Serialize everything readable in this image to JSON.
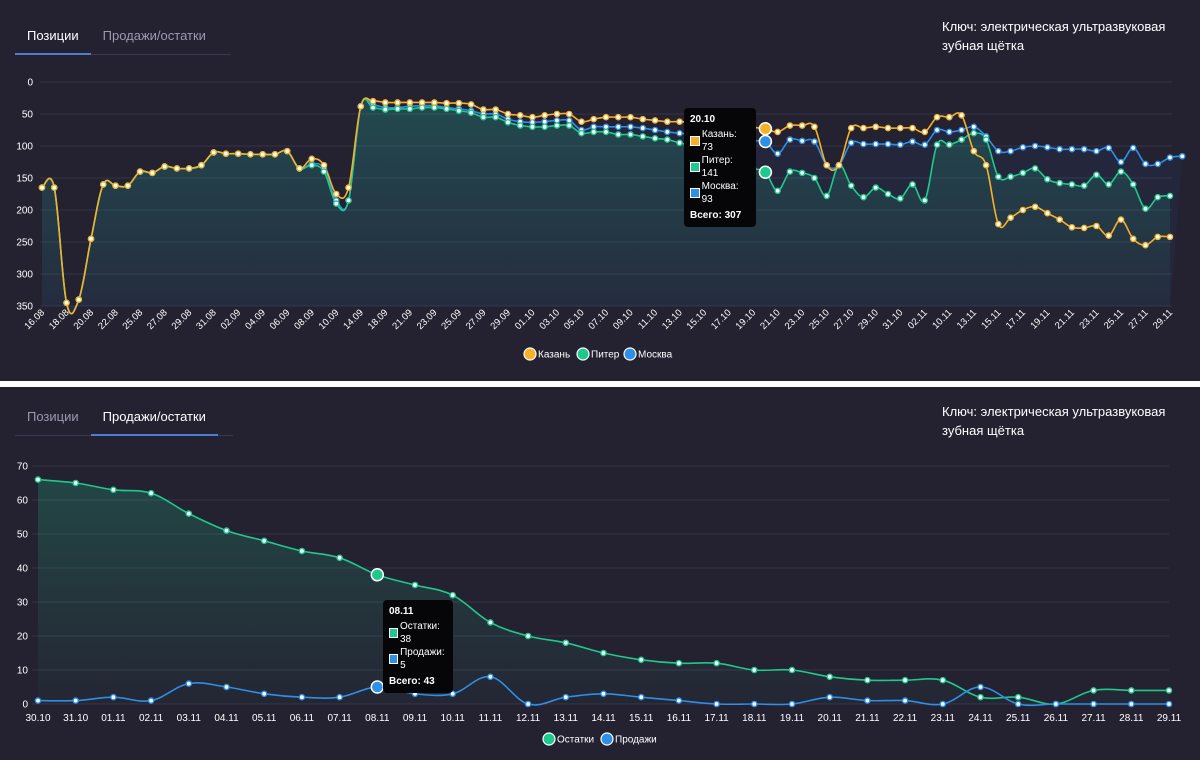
{
  "top": {
    "tabs": [
      {
        "label": "Позиции",
        "active": true
      },
      {
        "label": "Продажи/остатки",
        "active": false
      }
    ],
    "key_text": "Ключ: электрическая ультразвуковая зубная щётка",
    "tooltip": {
      "title": "20.10",
      "rows": [
        {
          "label": "Казань: 73",
          "color": "#f6b12a"
        },
        {
          "label": "Питер: 141",
          "color": "#1fc98d"
        },
        {
          "label": "Москва: 93",
          "color": "#2d8fe6"
        }
      ],
      "total": "Всего: 307"
    }
  },
  "bottom": {
    "tabs": [
      {
        "label": "Позиции",
        "active": false
      },
      {
        "label": "Продажи/остатки",
        "active": true
      }
    ],
    "key_text": "Ключ: электрическая ультразвуковая зубная щётка",
    "tooltip": {
      "title": "08.11",
      "rows": [
        {
          "label": "Остатки: 38",
          "color": "#1fc98d"
        },
        {
          "label": "Продажи: 5",
          "color": "#2d8fe6"
        }
      ],
      "total": "Всего: 43"
    }
  },
  "chart_data": [
    {
      "type": "line",
      "title": "Позиции",
      "y_reversed": true,
      "ylim": [
        0,
        350
      ],
      "y_ticks": [
        0,
        50,
        100,
        150,
        200,
        250,
        300,
        350
      ],
      "x_labels": [
        "16.08",
        "18.08",
        "20.08",
        "22.08",
        "25.08",
        "27.08",
        "29.08",
        "31.08",
        "02.09",
        "04.09",
        "06.09",
        "08.09",
        "10.09",
        "14.09",
        "18.09",
        "21.09",
        "23.09",
        "25.09",
        "27.09",
        "29.09",
        "01.10",
        "03.10",
        "05.10",
        "07.10",
        "09.10",
        "11.10",
        "13.10",
        "15.10",
        "17.10",
        "19.10",
        "21.10",
        "23.10",
        "25.10",
        "27.10",
        "29.10",
        "31.10",
        "02.11",
        "10.11",
        "13.11",
        "15.11",
        "17.11",
        "19.11",
        "21.11",
        "23.11",
        "25.11",
        "27.11",
        "29.11"
      ],
      "series": [
        {
          "name": "Казань",
          "color": "#f6b12a",
          "values": [
            165,
            165,
            345,
            340,
            245,
            160,
            162,
            162,
            140,
            142,
            132,
            135,
            135,
            130,
            110,
            112,
            112,
            113,
            113,
            113,
            108,
            135,
            120,
            130,
            175,
            165,
            38,
            30,
            32,
            32,
            32,
            32,
            32,
            33,
            33,
            35,
            43,
            43,
            50,
            52,
            55,
            52,
            50,
            50,
            62,
            58,
            55,
            55,
            55,
            58,
            60,
            62,
            62,
            63,
            65,
            68,
            70,
            70,
            71,
            73,
            78,
            68,
            68,
            70,
            130,
            130,
            72,
            72,
            70,
            72,
            72,
            72,
            78,
            55,
            55,
            52,
            108,
            130,
            222,
            212,
            200,
            195,
            205,
            215,
            227,
            228,
            225,
            240,
            215,
            245,
            255,
            242,
            242
          ]
        },
        {
          "name": "Питер",
          "color": "#1fc98d",
          "values": [
            165,
            165,
            345,
            340,
            245,
            160,
            162,
            162,
            140,
            142,
            132,
            135,
            135,
            130,
            110,
            112,
            112,
            113,
            113,
            113,
            108,
            135,
            130,
            140,
            190,
            185,
            38,
            40,
            43,
            42,
            42,
            40,
            40,
            42,
            45,
            48,
            55,
            55,
            63,
            68,
            70,
            70,
            68,
            68,
            80,
            78,
            78,
            82,
            82,
            85,
            88,
            90,
            95,
            100,
            105,
            110,
            118,
            125,
            135,
            141,
            170,
            140,
            142,
            150,
            178,
            130,
            162,
            180,
            165,
            175,
            182,
            160,
            185,
            98,
            98,
            90,
            80,
            90,
            148,
            148,
            142,
            135,
            152,
            158,
            160,
            162,
            145,
            160,
            140,
            160,
            198,
            180,
            178
          ]
        },
        {
          "name": "Москва",
          "color": "#2d8fe6",
          "values": [
            165,
            165,
            345,
            340,
            245,
            160,
            162,
            162,
            140,
            142,
            132,
            135,
            135,
            130,
            110,
            112,
            112,
            113,
            113,
            113,
            108,
            135,
            128,
            135,
            185,
            185,
            38,
            36,
            40,
            40,
            38,
            37,
            37,
            40,
            42,
            45,
            50,
            50,
            58,
            62,
            63,
            62,
            60,
            60,
            75,
            70,
            70,
            70,
            70,
            72,
            75,
            78,
            80,
            82,
            85,
            87,
            88,
            90,
            92,
            93,
            112,
            90,
            92,
            93,
            130,
            130,
            95,
            97,
            97,
            97,
            98,
            93,
            98,
            75,
            78,
            75,
            70,
            85,
            108,
            108,
            102,
            100,
            102,
            105,
            105,
            105,
            108,
            103,
            125,
            103,
            128,
            128,
            118,
            116
          ]
        }
      ],
      "legend": [
        "Казань",
        "Питер",
        "Москва"
      ],
      "legend_position": "bottom"
    },
    {
      "type": "line",
      "title": "Продажи/остатки",
      "ylim": [
        0,
        70
      ],
      "y_ticks": [
        0,
        10,
        20,
        30,
        40,
        50,
        60,
        70
      ],
      "categories": [
        "30.10",
        "31.10",
        "01.11",
        "02.11",
        "03.11",
        "04.11",
        "05.11",
        "06.11",
        "07.11",
        "08.11",
        "09.11",
        "10.11",
        "11.11",
        "12.11",
        "13.11",
        "14.11",
        "15.11",
        "16.11",
        "17.11",
        "18.11",
        "19.11",
        "20.11",
        "21.11",
        "22.11",
        "23.11",
        "24.11",
        "25.11",
        "26.11",
        "27.11",
        "28.11",
        "29.11"
      ],
      "series": [
        {
          "name": "Остатки",
          "color": "#1fc98d",
          "values": [
            66,
            65,
            63,
            62,
            56,
            51,
            48,
            45,
            43,
            38,
            35,
            32,
            24,
            20,
            18,
            15,
            13,
            12,
            12,
            10,
            10,
            8,
            7,
            7,
            7,
            2,
            2,
            0,
            4,
            4,
            4
          ]
        },
        {
          "name": "Продажи",
          "color": "#2d8fe6",
          "values": [
            1,
            1,
            2,
            1,
            6,
            5,
            3,
            2,
            2,
            5,
            3,
            3,
            8,
            0,
            2,
            3,
            2,
            1,
            0,
            0,
            0,
            2,
            1,
            1,
            0,
            5,
            0,
            0,
            0,
            0,
            0
          ]
        }
      ],
      "legend": [
        "Остатки",
        "Продажи"
      ],
      "legend_position": "bottom"
    }
  ]
}
